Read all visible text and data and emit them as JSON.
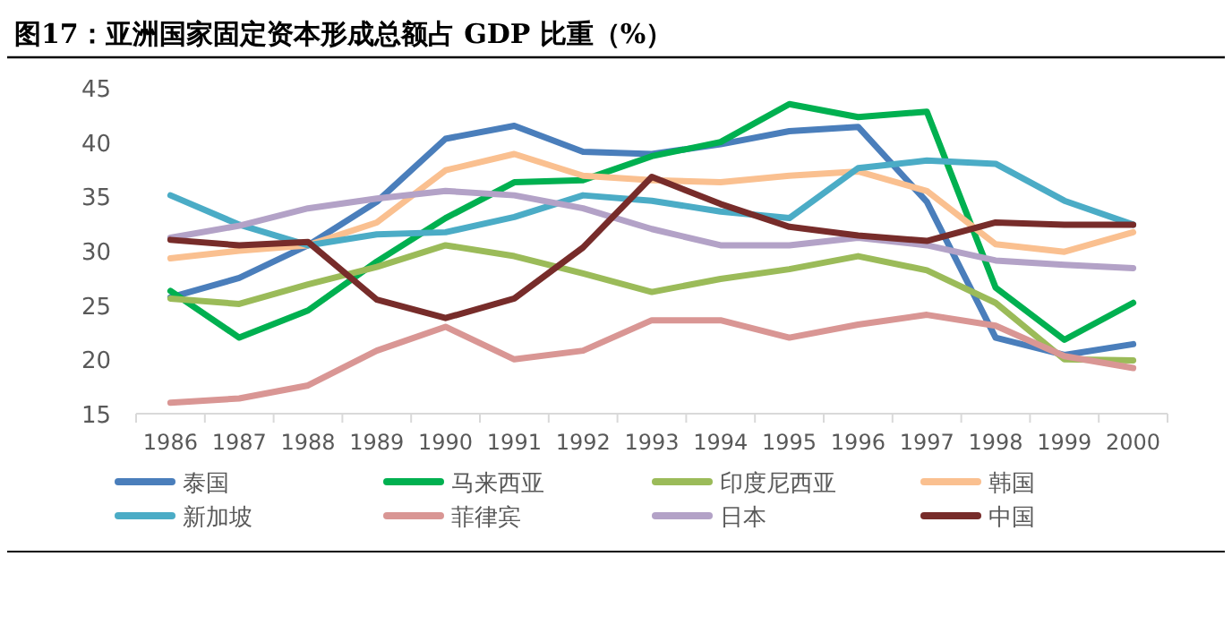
{
  "chart_data": {
    "type": "line",
    "title": "图17：亚洲国家固定资本形成总额占 GDP 比重（%）",
    "categories": [
      "1986",
      "1987",
      "1988",
      "1989",
      "1990",
      "1991",
      "1992",
      "1993",
      "1994",
      "1995",
      "1996",
      "1997",
      "1998",
      "1999",
      "2000"
    ],
    "ylim": [
      15,
      45
    ],
    "yticks": [
      15,
      20,
      25,
      30,
      35,
      40,
      45
    ],
    "grid": false,
    "legend": "bottom",
    "marker": "none",
    "line_style": "solid",
    "series": [
      {
        "name": "泰国",
        "color": "#4a7ebb",
        "values": [
          25.7,
          27.5,
          30.5,
          34.5,
          40.3,
          41.5,
          39.1,
          38.9,
          39.8,
          41.0,
          41.4,
          34.5,
          22.0,
          20.4,
          21.4
        ]
      },
      {
        "name": "马来西亚",
        "color": "#00b050",
        "values": [
          26.3,
          22.0,
          24.5,
          29.0,
          33.0,
          36.3,
          36.5,
          38.7,
          40.0,
          43.5,
          42.3,
          42.8,
          26.6,
          21.8,
          25.2
        ]
      },
      {
        "name": "印度尼西亚",
        "color": "#9bbb59",
        "values": [
          25.6,
          25.1,
          26.9,
          28.5,
          30.5,
          29.5,
          27.9,
          26.2,
          27.4,
          28.3,
          29.5,
          28.2,
          25.2,
          20.0,
          19.9
        ]
      },
      {
        "name": "韩国",
        "color": "#fac090",
        "values": [
          29.3,
          30.0,
          30.5,
          32.6,
          37.4,
          38.9,
          36.9,
          36.5,
          36.3,
          36.9,
          37.3,
          35.5,
          30.6,
          29.9,
          31.7
        ]
      },
      {
        "name": "新加坡",
        "color": "#4bacc6",
        "values": [
          35.1,
          32.4,
          30.5,
          31.5,
          31.7,
          33.1,
          35.1,
          34.6,
          33.6,
          33.0,
          37.6,
          38.3,
          38.0,
          34.6,
          32.4
        ]
      },
      {
        "name": "菲律宾",
        "color": "#d99694",
        "values": [
          16.0,
          16.4,
          17.6,
          20.8,
          23.0,
          20.0,
          20.8,
          23.6,
          23.6,
          22.0,
          23.2,
          24.1,
          23.1,
          20.3,
          19.2
        ]
      },
      {
        "name": "日本",
        "color": "#b3a2c7",
        "values": [
          31.2,
          32.3,
          33.9,
          34.8,
          35.5,
          35.1,
          33.9,
          32.0,
          30.5,
          30.5,
          31.2,
          30.5,
          29.1,
          28.7,
          28.4
        ]
      },
      {
        "name": "中国",
        "color": "#772c2a",
        "values": [
          31.0,
          30.5,
          30.8,
          25.5,
          23.8,
          25.6,
          30.3,
          36.8,
          34.3,
          32.2,
          31.4,
          30.9,
          32.6,
          32.4,
          32.4
        ]
      }
    ]
  }
}
